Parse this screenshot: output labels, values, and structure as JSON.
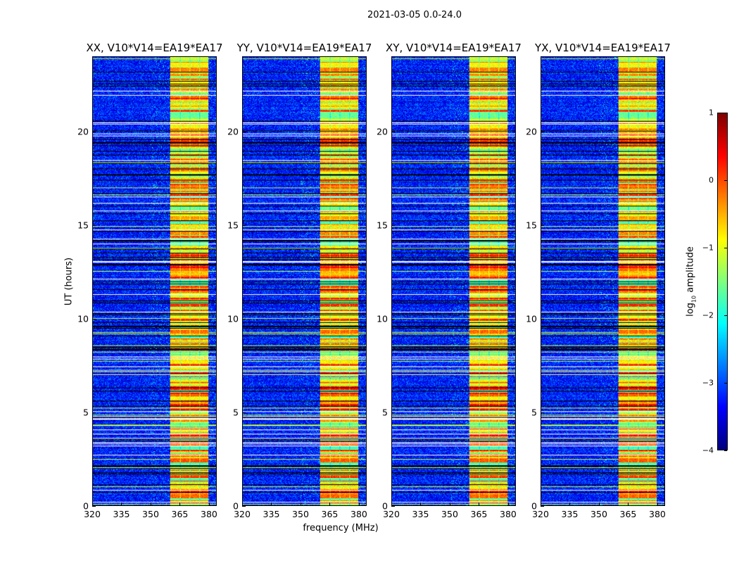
{
  "chart_data": {
    "type": "heatmap",
    "title": "2021-03-05 0.0-24.0",
    "panels": [
      {
        "title": "XX, V10*V14=EA19*EA17"
      },
      {
        "title": "YY, V10*V14=EA19*EA17"
      },
      {
        "title": "XY, V10*V14=EA19*EA17"
      },
      {
        "title": "YX, V10*V14=EA19*EA17"
      }
    ],
    "xlabel": "frequency (MHz)",
    "ylabel": "UT (hours)",
    "xlim": [
      320,
      384
    ],
    "ylim": [
      0,
      24
    ],
    "xticks": [
      320,
      335,
      350,
      365,
      380
    ],
    "yticks": [
      0,
      5,
      10,
      15,
      20
    ],
    "bright_band_mhz": [
      360,
      380
    ],
    "colormap": "jet",
    "colorbar": {
      "label": "log10 amplitude",
      "label_main": "log",
      "label_sub": "10",
      "label_rest": " amplitude",
      "range": [
        -4,
        1
      ],
      "ticks": [
        1,
        0,
        -1,
        -2,
        -3,
        -4
      ],
      "tick_labels": [
        "1",
        "0",
        "−1",
        "−2",
        "−3",
        "−4"
      ]
    }
  }
}
